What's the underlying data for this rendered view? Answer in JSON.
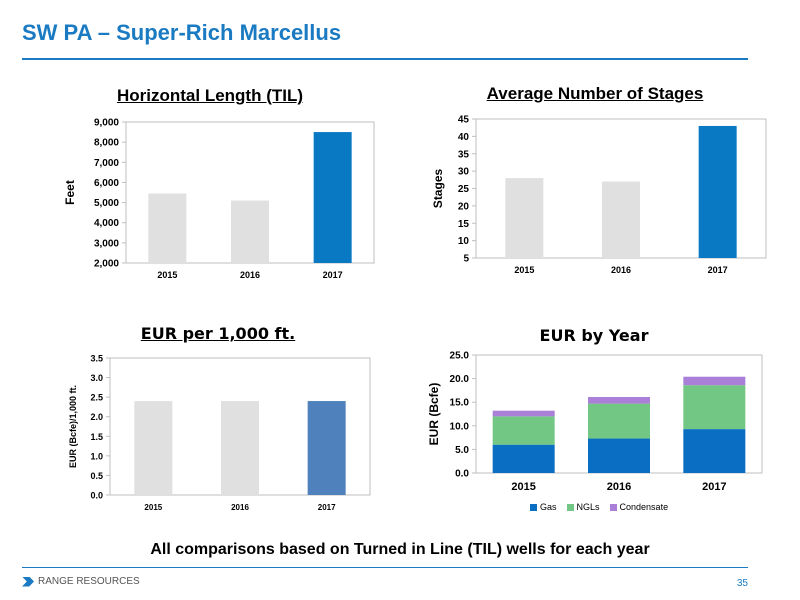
{
  "slide": {
    "title": "SW PA – Super-Rich Marcellus",
    "footnote": "All comparisons based on Turned in Line (TIL) wells for each year",
    "logo_text": "RANGE RESOURCES",
    "page_number": "35",
    "accent_color": "#1a7ac2"
  },
  "chart_data": [
    {
      "type": "bar",
      "title": "Horizontal Length (TIL)",
      "ylabel": "Feet",
      "categories": [
        "2015",
        "2016",
        "2017"
      ],
      "values": [
        5450,
        5100,
        8500
      ],
      "ylim": [
        2000,
        9000
      ],
      "yticks": [
        "2,000",
        "3,000",
        "4,000",
        "5,000",
        "6,000",
        "7,000",
        "8,000",
        "9,000"
      ],
      "colors": [
        "#e0e0e0",
        "#e0e0e0",
        "#0a79c4"
      ],
      "grid": false
    },
    {
      "type": "bar",
      "title": "Average Number of Stages",
      "ylabel": "Stages",
      "categories": [
        "2015",
        "2016",
        "2017"
      ],
      "values": [
        28,
        27,
        43
      ],
      "ylim": [
        5,
        45
      ],
      "yticks": [
        "5",
        "10",
        "15",
        "20",
        "25",
        "30",
        "35",
        "40",
        "45"
      ],
      "colors": [
        "#e0e0e0",
        "#e0e0e0",
        "#0a79c4"
      ],
      "grid": false
    },
    {
      "type": "bar",
      "title": "EUR per 1,000 ft.",
      "ylabel": "EUR (Bcfe)/1,000 ft.",
      "categories": [
        "2015",
        "2016",
        "2017"
      ],
      "values": [
        2.4,
        2.4,
        2.4
      ],
      "ylim": [
        0,
        3.5
      ],
      "yticks": [
        "0.0",
        "0.5",
        "1.0",
        "1.5",
        "2.0",
        "2.5",
        "3.0",
        "3.5"
      ],
      "colors": [
        "#e0e0e0",
        "#e0e0e0",
        "#4f81bd"
      ],
      "grid": false
    },
    {
      "type": "bar",
      "stacked": true,
      "title": "EUR by Year",
      "ylabel": "EUR (Bcfe)",
      "categories": [
        "2015",
        "2016",
        "2017"
      ],
      "ylim": [
        0,
        25
      ],
      "yticks": [
        "0.0",
        "5.0",
        "10.0",
        "15.0",
        "20.0",
        "25.0"
      ],
      "series": [
        {
          "name": "Gas",
          "values": [
            6.0,
            7.3,
            9.3
          ],
          "color": "#0a6fc2"
        },
        {
          "name": "NGLs",
          "values": [
            6.0,
            7.4,
            9.3
          ],
          "color": "#72c784"
        },
        {
          "name": "Condensate",
          "values": [
            1.2,
            1.4,
            1.8
          ],
          "color": "#a97fd8"
        }
      ],
      "legend_position": "bottom",
      "grid": false
    }
  ]
}
